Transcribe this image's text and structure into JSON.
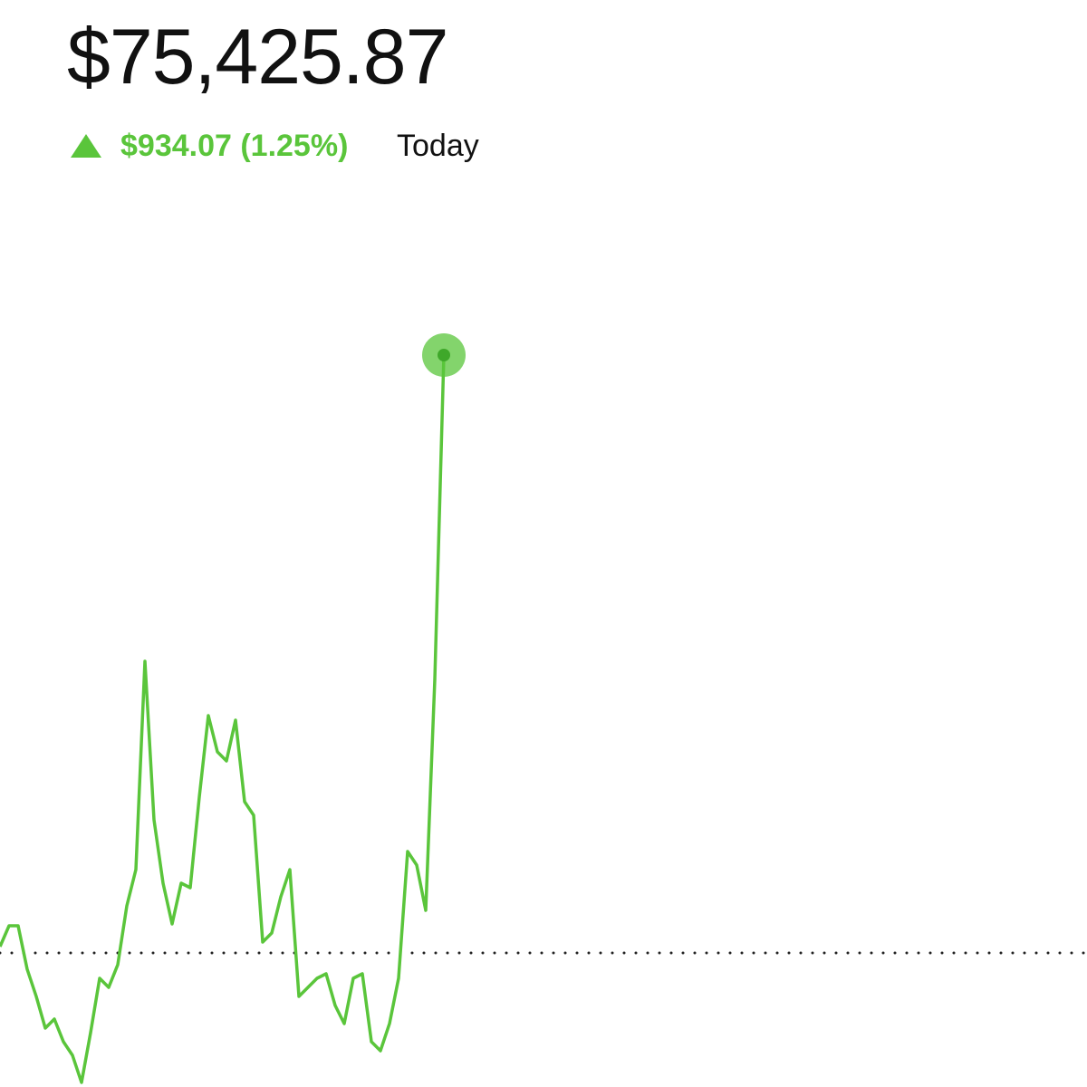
{
  "header": {
    "price": "$75,425.87",
    "change": "$934.07 (1.25%)",
    "period": "Today"
  },
  "chart_data": {
    "type": "line",
    "color": "#5ac53b",
    "reference_value": 74491.8,
    "values": [
      74501.7,
      74534.3,
      74534.3,
      74466.3,
      74423.9,
      74374.3,
      74388.5,
      74353.1,
      74331.9,
      74289.4,
      74367.3,
      74452.2,
      74438.0,
      74473.4,
      74565.4,
      74622.0,
      74947.5,
      74699.8,
      74600.8,
      74537.1,
      74600.8,
      74593.7,
      74735.2,
      74862.6,
      74806.0,
      74791.8,
      74855.5,
      74728.2,
      74706.9,
      74508.8,
      74522.9,
      74579.5,
      74622.0,
      74423.9,
      74438.0,
      74452.2,
      74459.2,
      74409.7,
      74381.4,
      74452.2,
      74459.2,
      74353.1,
      74338.9,
      74381.4,
      74452.2,
      74650.3,
      74629.1,
      74558.3,
      74919.2,
      75425.87,
      null,
      null,
      null,
      null,
      null,
      null,
      null,
      null,
      null,
      null,
      null,
      null,
      null,
      null,
      null,
      null,
      null,
      null,
      null,
      null,
      null,
      null,
      null,
      null,
      null,
      null,
      null,
      null,
      null,
      null,
      null,
      null,
      null,
      null,
      null,
      null,
      null,
      null,
      null,
      null,
      null,
      null,
      null,
      null,
      null,
      null,
      null,
      null,
      null,
      null,
      null,
      null,
      null,
      null,
      null,
      null,
      null,
      null,
      null,
      null,
      null,
      null,
      null,
      null,
      null,
      null,
      null,
      null,
      null,
      null,
      null
    ]
  }
}
